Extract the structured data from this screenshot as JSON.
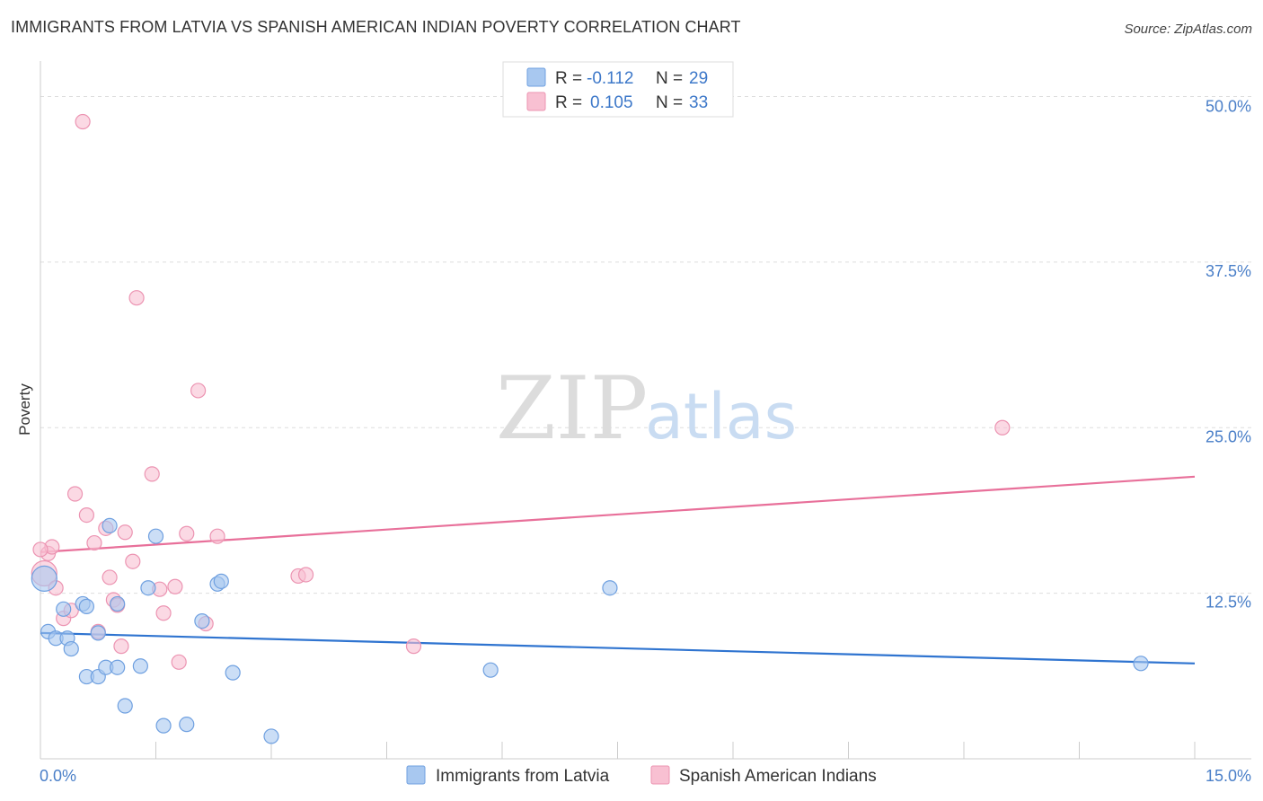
{
  "header": {
    "title": "IMMIGRANTS FROM LATVIA VS SPANISH AMERICAN INDIAN POVERTY CORRELATION CHART",
    "source": "Source: ZipAtlas.com"
  },
  "watermark": {
    "zip": "ZIP",
    "atlas": "atlas"
  },
  "legend_top": {
    "series1": {
      "r_label": "R =",
      "r_value": "-0.112",
      "n_label": "N =",
      "n_value": "29"
    },
    "series2": {
      "r_label": "R =",
      "r_value": "0.105",
      "n_label": "N =",
      "n_value": "33"
    }
  },
  "legend_bottom": {
    "series1": "Immigrants from Latvia",
    "series2": "Spanish American Indians"
  },
  "colors": {
    "series1_fill": "#a8c8f0",
    "series1_stroke": "#6fa0e0",
    "series1_line": "#2f74d0",
    "series2_fill": "#f8c0d2",
    "series2_stroke": "#ec94b2",
    "series2_line": "#e8709a",
    "tick_text": "#4a7fc8",
    "grid": "#dddddd"
  },
  "chart_data": {
    "type": "scatter",
    "title": "IMMIGRANTS FROM LATVIA VS SPANISH AMERICAN INDIAN POVERTY CORRELATION CHART",
    "xlabel": "",
    "ylabel": "Poverty",
    "xlim": [
      0,
      15
    ],
    "ylim": [
      0,
      52
    ],
    "x_tick_labels": [
      "0.0%",
      "15.0%"
    ],
    "y_ticks": [
      {
        "value": 12.5,
        "label": "12.5%"
      },
      {
        "value": 25.0,
        "label": "25.0%"
      },
      {
        "value": 37.5,
        "label": "37.5%"
      },
      {
        "value": 50.0,
        "label": "50.0%"
      }
    ],
    "x_minor_ticks": [
      0,
      1.5,
      3,
      4.5,
      6,
      7.5,
      9,
      10.5,
      12,
      13.5,
      15
    ],
    "grid": true,
    "legend_position": "top-center",
    "series": [
      {
        "name": "Immigrants from Latvia",
        "r": -0.112,
        "n": 29,
        "trend": {
          "x": [
            0,
            15
          ],
          "y": [
            9.5,
            7.2
          ]
        },
        "points": [
          {
            "x": 0.05,
            "y": 13.6,
            "big": true
          },
          {
            "x": 0.1,
            "y": 9.6
          },
          {
            "x": 0.2,
            "y": 9.1
          },
          {
            "x": 0.3,
            "y": 11.3
          },
          {
            "x": 0.35,
            "y": 9.1
          },
          {
            "x": 0.4,
            "y": 8.3
          },
          {
            "x": 0.55,
            "y": 11.7
          },
          {
            "x": 0.6,
            "y": 11.5
          },
          {
            "x": 0.6,
            "y": 6.2
          },
          {
            "x": 0.75,
            "y": 9.5
          },
          {
            "x": 0.75,
            "y": 6.2
          },
          {
            "x": 0.85,
            "y": 6.9
          },
          {
            "x": 0.9,
            "y": 17.6
          },
          {
            "x": 1.0,
            "y": 11.7
          },
          {
            "x": 1.0,
            "y": 6.9
          },
          {
            "x": 1.1,
            "y": 4.0
          },
          {
            "x": 1.3,
            "y": 7.0
          },
          {
            "x": 1.4,
            "y": 12.9
          },
          {
            "x": 1.5,
            "y": 16.8
          },
          {
            "x": 1.6,
            "y": 2.5
          },
          {
            "x": 1.9,
            "y": 2.6
          },
          {
            "x": 2.1,
            "y": 10.4
          },
          {
            "x": 2.3,
            "y": 13.2
          },
          {
            "x": 2.35,
            "y": 13.4
          },
          {
            "x": 2.5,
            "y": 6.5
          },
          {
            "x": 3.0,
            "y": 1.7
          },
          {
            "x": 5.85,
            "y": 6.7
          },
          {
            "x": 7.4,
            "y": 12.9
          },
          {
            "x": 14.3,
            "y": 7.2
          }
        ]
      },
      {
        "name": "Spanish American Indians",
        "r": 0.105,
        "n": 33,
        "trend": {
          "x": [
            0,
            15
          ],
          "y": [
            15.6,
            21.3
          ]
        },
        "points": [
          {
            "x": 0.05,
            "y": 14.0,
            "big": true
          },
          {
            "x": 0.1,
            "y": 15.5
          },
          {
            "x": 0.15,
            "y": 16.0
          },
          {
            "x": 0.2,
            "y": 12.9
          },
          {
            "x": 0.3,
            "y": 10.6
          },
          {
            "x": 0.4,
            "y": 11.2
          },
          {
            "x": 0.45,
            "y": 20.0
          },
          {
            "x": 0.55,
            "y": 48.1
          },
          {
            "x": 0.6,
            "y": 18.4
          },
          {
            "x": 0.7,
            "y": 16.3
          },
          {
            "x": 0.75,
            "y": 9.6
          },
          {
            "x": 0.85,
            "y": 17.4
          },
          {
            "x": 0.9,
            "y": 13.7
          },
          {
            "x": 0.95,
            "y": 12.0
          },
          {
            "x": 1.0,
            "y": 11.6
          },
          {
            "x": 1.05,
            "y": 8.5
          },
          {
            "x": 1.1,
            "y": 17.1
          },
          {
            "x": 1.2,
            "y": 14.9
          },
          {
            "x": 1.25,
            "y": 34.8
          },
          {
            "x": 1.45,
            "y": 21.5
          },
          {
            "x": 1.55,
            "y": 12.8
          },
          {
            "x": 1.6,
            "y": 11.0
          },
          {
            "x": 1.75,
            "y": 13.0
          },
          {
            "x": 1.8,
            "y": 7.3
          },
          {
            "x": 1.9,
            "y": 17.0
          },
          {
            "x": 2.05,
            "y": 27.8
          },
          {
            "x": 2.15,
            "y": 10.2
          },
          {
            "x": 2.3,
            "y": 16.8
          },
          {
            "x": 3.35,
            "y": 13.8
          },
          {
            "x": 3.45,
            "y": 13.9
          },
          {
            "x": 4.85,
            "y": 8.5
          },
          {
            "x": 12.5,
            "y": 25.0
          },
          {
            "x": 0.0,
            "y": 15.8
          }
        ]
      }
    ]
  }
}
